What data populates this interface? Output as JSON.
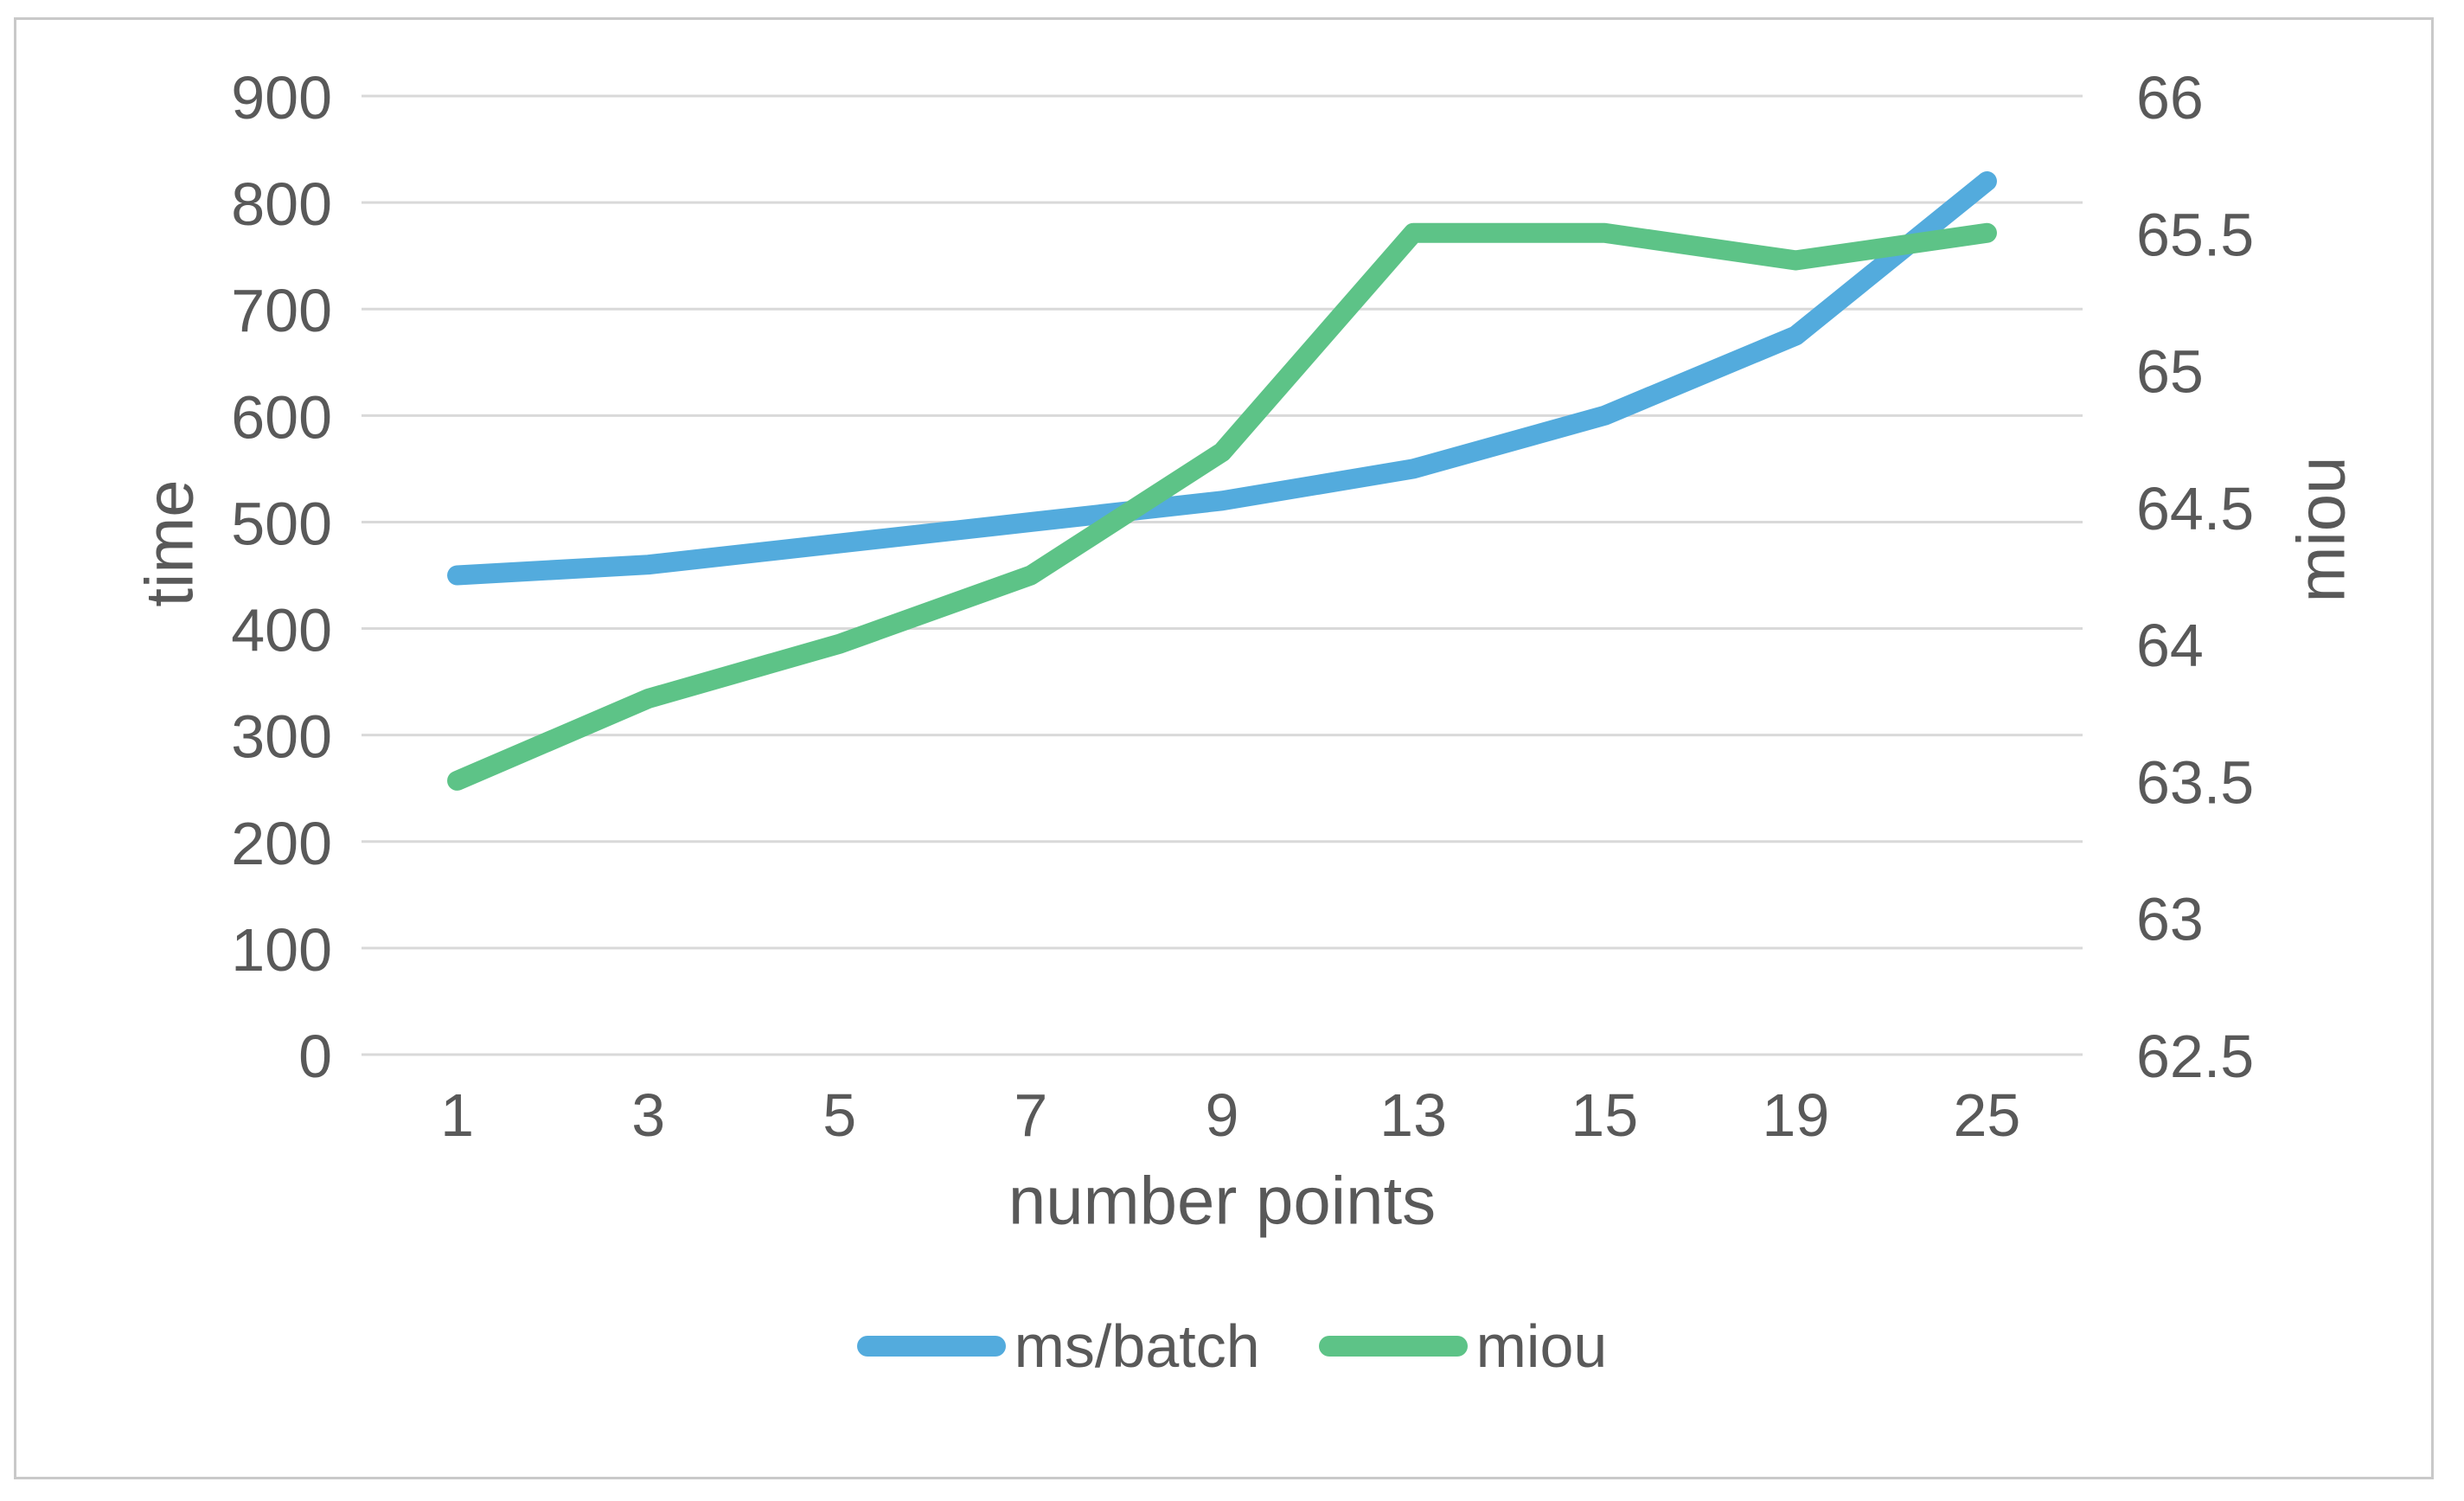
{
  "chart_data": {
    "type": "line",
    "title": "",
    "categories": [
      "1",
      "3",
      "5",
      "7",
      "9",
      "13",
      "15",
      "19",
      "25"
    ],
    "xlabel": "number points",
    "left_axis": {
      "label": "time",
      "min": 0,
      "max": 900,
      "step": 100,
      "ticks": [
        "0",
        "100",
        "200",
        "300",
        "400",
        "500",
        "600",
        "700",
        "800",
        "900"
      ]
    },
    "right_axis": {
      "label": "miou",
      "min": 62.5,
      "max": 66,
      "step": 0.5,
      "ticks": [
        "62.5",
        "63",
        "63.5",
        "64",
        "64.5",
        "65",
        "65.5",
        "66"
      ]
    },
    "series": [
      {
        "name": "ms/batch",
        "axis": "left",
        "color": "#53abdd",
        "values": [
          450,
          460,
          480,
          500,
          520,
          550,
          600,
          675,
          820
        ]
      },
      {
        "name": "miou",
        "axis": "right",
        "color": "#5dc387",
        "values": [
          63.5,
          63.8,
          64.0,
          64.25,
          64.7,
          65.5,
          65.5,
          65.4,
          65.5
        ]
      }
    ],
    "grid": true,
    "legend_position": "bottom",
    "colors": {
      "grid": "#d9d9d9",
      "text": "#595959",
      "frame_border": "#c9c9c9",
      "background": "#ffffff"
    }
  }
}
